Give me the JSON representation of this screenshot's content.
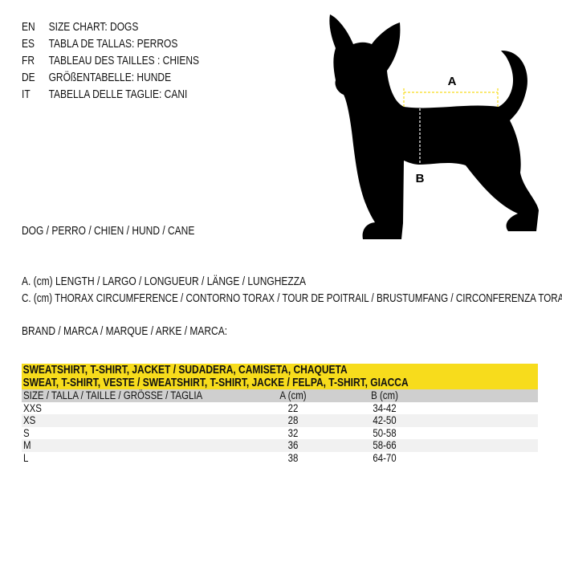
{
  "titles": [
    {
      "code": "EN",
      "text": "SIZE CHART: DOGS"
    },
    {
      "code": "ES",
      "text": "TABLA DE TALLAS: PERROS"
    },
    {
      "code": "FR",
      "text": "TABLEAU DES TAILLES : CHIENS"
    },
    {
      "code": "DE",
      "text": "GRÖßENTABELLE: HUNDE"
    },
    {
      "code": "IT",
      "text": "TABELLA DELLE TAGLIE: CANI"
    }
  ],
  "animal": "DOG / PERRO / CHIEN / HUND / CANE",
  "legend": {
    "a": "A. (cm) LENGTH / LARGO / LONGUEUR / LÄNGE / LUNGHEZZA",
    "c": "C. (cm) THORAX CIRCUMFERENCE / CONTORNO TORAX / TOUR DE POITRAIL / BRUSTUMFANG / CIRCONFERENZA TORACE"
  },
  "brand": "BRAND / MARCA / MARQUE / ARKE / MARCA:",
  "diagram": {
    "label_a": "A",
    "label_b": "B",
    "accent": "#f7dc1c"
  },
  "table": {
    "title1": "SWEATSHIRT, T-SHIRT, JACKET / SUDADERA, CAMISETA, CHAQUETA",
    "title2": "SWEAT, T-SHIRT, VESTE / SWEATSHIRT, T-SHIRT, JACKE / FELPA, T-SHIRT, GIACCA",
    "headers": [
      "SIZE / TALLA / TAILLE / GRÖSSE / TAGLIA",
      "A (cm)",
      "B (cm)"
    ],
    "rows": [
      [
        "XXS",
        "22",
        "34-42"
      ],
      [
        "XS",
        "28",
        "42-50"
      ],
      [
        "S",
        "32",
        "50-58"
      ],
      [
        "M",
        "36",
        "58-66"
      ],
      [
        "L",
        "38",
        "64-70"
      ]
    ]
  }
}
